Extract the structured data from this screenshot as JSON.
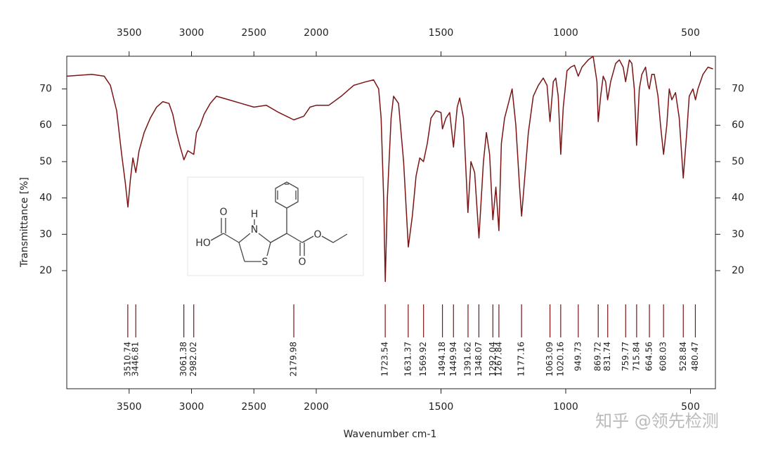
{
  "chart_data": {
    "type": "line",
    "xlabel": "Wavenumber cm-1",
    "ylabel": "Transmittance [%]",
    "xlim": [
      4000,
      400
    ],
    "xbreak": 2000,
    "xticks": [
      3500,
      3000,
      2500,
      2000,
      1500,
      1000,
      500
    ],
    "ylim": [
      -12.5,
      79
    ],
    "yticks": [
      20,
      30,
      40,
      50,
      60,
      70
    ],
    "color": "#7b1414",
    "x": [
      4000,
      3800,
      3700,
      3650,
      3600,
      3560,
      3530,
      3510,
      3490,
      3470,
      3446,
      3420,
      3380,
      3330,
      3280,
      3230,
      3180,
      3150,
      3120,
      3090,
      3061,
      3030,
      2982,
      2960,
      2930,
      2900,
      2850,
      2800,
      2700,
      2600,
      2500,
      2400,
      2300,
      2180,
      2100,
      2050,
      2000,
      1950,
      1900,
      1850,
      1800,
      1770,
      1750,
      1740,
      1730,
      1723.5,
      1715,
      1700,
      1690,
      1670,
      1650,
      1631,
      1615,
      1600,
      1585,
      1570,
      1555,
      1540,
      1520,
      1500,
      1494,
      1480,
      1465,
      1450,
      1435,
      1425,
      1410,
      1392,
      1380,
      1365,
      1348,
      1330,
      1318,
      1305,
      1292,
      1280,
      1268,
      1258,
      1245,
      1230,
      1215,
      1200,
      1185,
      1177,
      1165,
      1150,
      1130,
      1110,
      1090,
      1075,
      1063,
      1050,
      1040,
      1030,
      1020,
      1010,
      995,
      980,
      965,
      950,
      935,
      910,
      890,
      875,
      870,
      860,
      850,
      840,
      832,
      820,
      800,
      785,
      770,
      760,
      745,
      735,
      725,
      716,
      705,
      695,
      680,
      670,
      665,
      655,
      645,
      630,
      620,
      608,
      595,
      585,
      575,
      560,
      545,
      529,
      515,
      505,
      490,
      480,
      470,
      450,
      430,
      410
    ],
    "values": [
      73.5,
      74,
      73.5,
      71,
      64,
      52,
      44,
      37.5,
      45,
      51,
      47,
      53,
      58,
      62,
      65,
      66.5,
      66,
      63,
      58,
      54,
      50.5,
      53,
      52,
      58,
      60,
      63,
      66,
      68,
      67,
      66,
      65,
      65.5,
      63.5,
      61.5,
      62.5,
      65,
      65.5,
      65.5,
      68,
      71,
      72,
      72.5,
      70,
      62,
      40,
      17,
      40,
      62,
      68,
      66,
      50,
      26.5,
      35,
      46,
      51,
      50,
      55,
      62,
      64,
      63.5,
      59,
      62,
      63.5,
      54,
      65,
      67.5,
      62,
      36,
      50,
      47,
      29,
      50,
      58,
      52,
      34,
      43,
      31,
      55,
      62,
      66,
      70,
      60,
      43,
      35,
      45,
      58,
      68,
      71,
      73,
      71,
      61,
      72,
      73,
      68,
      52,
      65,
      75,
      76,
      76.5,
      73.5,
      76,
      78,
      79,
      72,
      61,
      68,
      73.5,
      72,
      67,
      72,
      77,
      78,
      76,
      72,
      78,
      77,
      70,
      54.5,
      70,
      74,
      76,
      71,
      70,
      74,
      74,
      68,
      60,
      52,
      60,
      70,
      67,
      69,
      62,
      45.5,
      58,
      68,
      70,
      67,
      70,
      74,
      76,
      75.5
    ],
    "peaks": [
      3510.74,
      3446.81,
      3061.38,
      2982.02,
      2179.98,
      1723.54,
      1631.37,
      1569.92,
      1494.18,
      1449.94,
      1391.62,
      1348.07,
      1292.04,
      1267.84,
      1177.16,
      1063.09,
      1020.16,
      949.73,
      869.72,
      831.74,
      759.77,
      715.84,
      664.56,
      608.03,
      528.84,
      480.47
    ],
    "inset_labels": [
      "HO",
      "O",
      "N",
      "H",
      "S",
      "O",
      "O"
    ],
    "watermark": "知乎 @领先检测"
  }
}
